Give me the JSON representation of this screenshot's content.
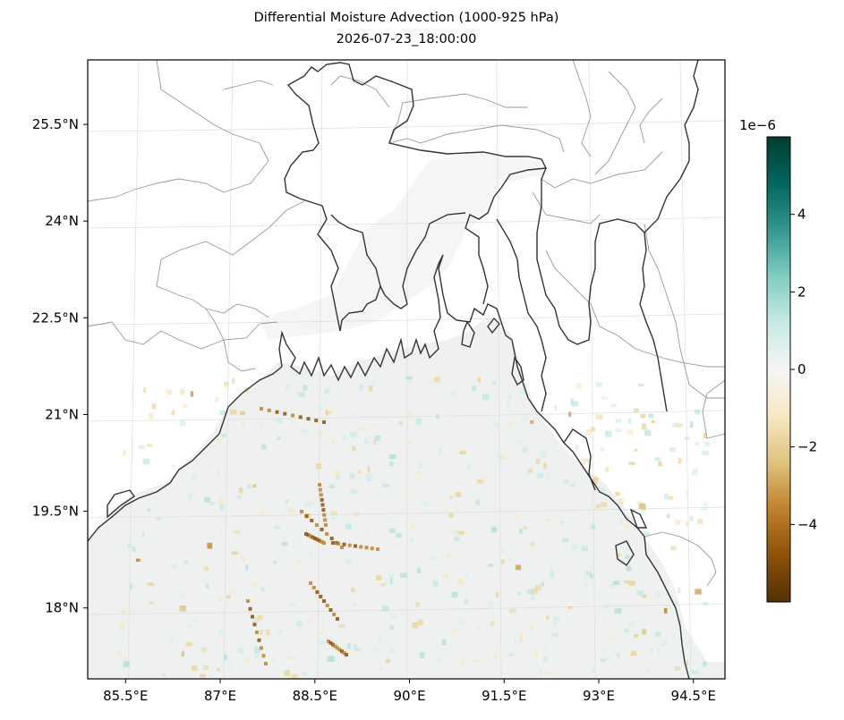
{
  "title": {
    "line1": "Differential Moisture Advection (1000-925 hPa)",
    "line2": "2026-07-23_18:00:00"
  },
  "map": {
    "region": "Bay of Bengal / Bangladesh",
    "lon_range": [
      84.9,
      95.0
    ],
    "lat_range": [
      16.9,
      26.5
    ],
    "x_ticks": [
      "85.5°E",
      "87°E",
      "88.5°E",
      "90°E",
      "91.5°E",
      "93°E",
      "94.5°E"
    ],
    "x_tick_values": [
      85.5,
      87,
      88.5,
      90,
      91.5,
      93,
      94.5
    ],
    "y_ticks": [
      "25.5°N",
      "24°N",
      "22.5°N",
      "21°N",
      "19.5°N",
      "18°N"
    ],
    "y_tick_values": [
      25.5,
      24,
      22.5,
      21,
      19.5,
      18
    ],
    "gridlines": true,
    "colors": {
      "coastline": "#333333",
      "borders": "#999999",
      "land": "#ffffff",
      "ocean_field": "#eef1f0"
    }
  },
  "colorbar": {
    "colormap": "BrBG",
    "exponent_label": "1e−6",
    "range": [
      -6,
      6
    ],
    "ticks": [
      "4",
      "2",
      "0",
      "−2",
      "−4"
    ],
    "tick_values": [
      4,
      2,
      0,
      -2,
      -4
    ],
    "colors": [
      "#543005",
      "#8c510a",
      "#bf812d",
      "#dfc27d",
      "#f6e8c3",
      "#f5f5f5",
      "#c7eae5",
      "#80cdc1",
      "#35978f",
      "#01665e",
      "#003c30"
    ]
  }
}
